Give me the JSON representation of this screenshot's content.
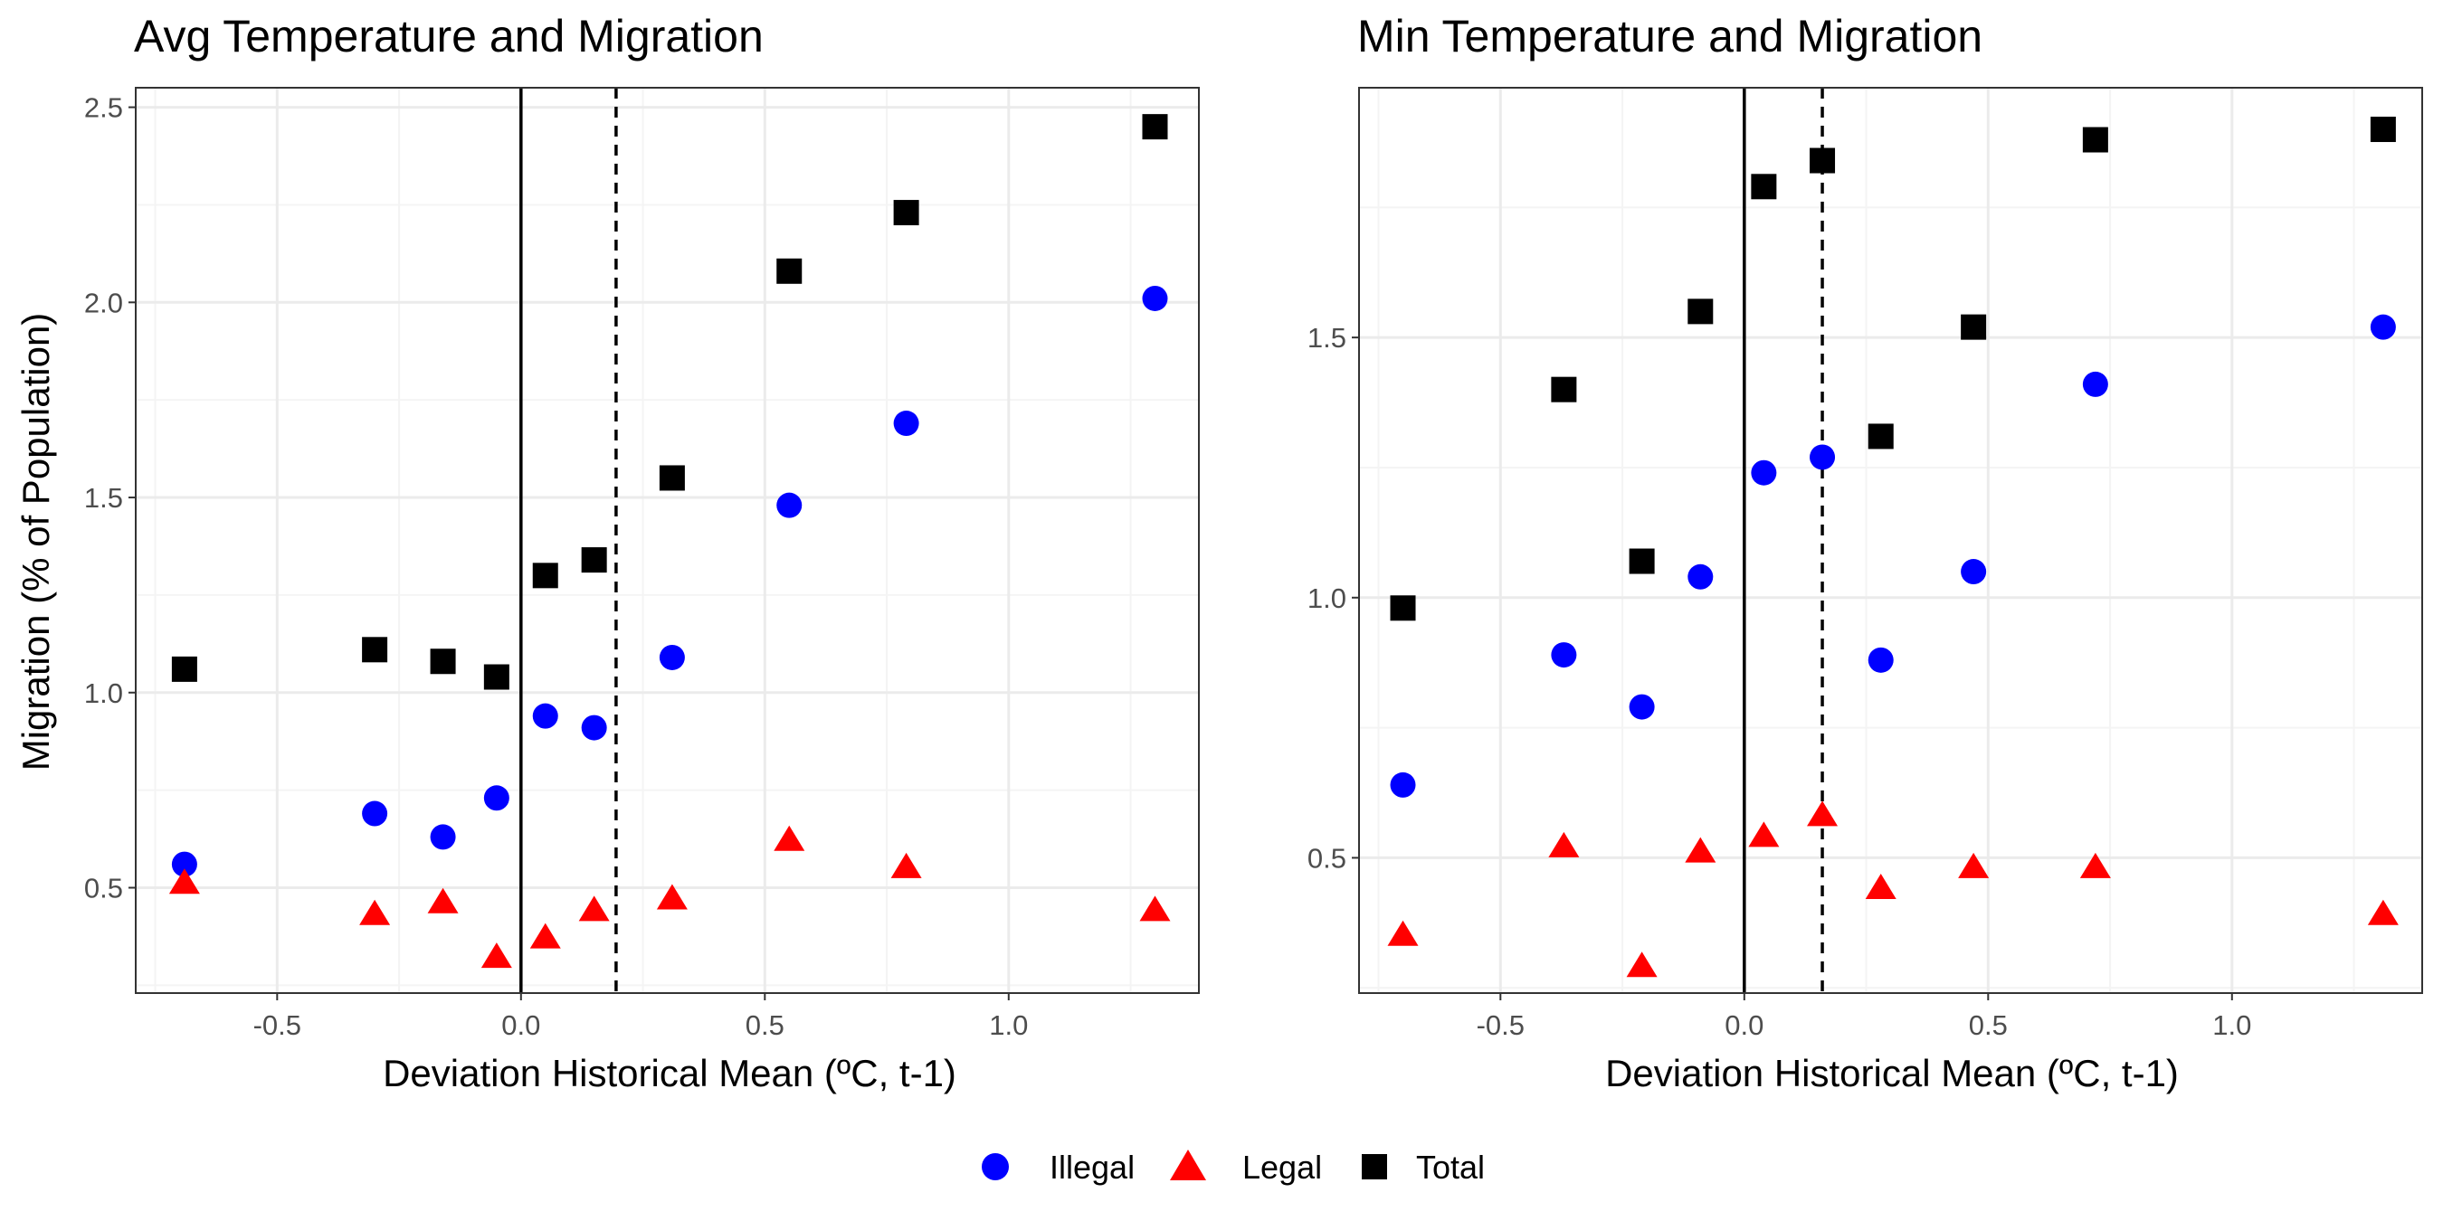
{
  "chart_data": [
    {
      "type": "scatter",
      "title": "Avg Temperature and Migration",
      "xlabel": "Deviation Historical Mean (ºC, t-1)",
      "ylabel": "Migration (% of Population)",
      "xlim": [
        -0.79,
        1.39
      ],
      "ylim": [
        0.23,
        2.55
      ],
      "xticks": [
        -0.5,
        0.0,
        0.5,
        1.0
      ],
      "xtick_labels": [
        "-0.5",
        "0.0",
        "0.5",
        "1.0"
      ],
      "yticks": [
        0.5,
        1.0,
        1.5,
        2.0,
        2.5
      ],
      "ytick_labels": [
        "0.5",
        "1.0",
        "1.5",
        "2.0",
        "2.5"
      ],
      "grid": true,
      "vlines": [
        {
          "x": 0.0,
          "style": "solid"
        },
        {
          "x": 0.195,
          "style": "dashed"
        }
      ],
      "series": [
        {
          "name": "Illegal",
          "marker": "circle",
          "color": "#0000ff",
          "x": [
            -0.69,
            -0.3,
            -0.16,
            -0.05,
            0.05,
            0.15,
            0.31,
            0.55,
            0.79,
            1.3
          ],
          "y": [
            0.56,
            0.69,
            0.63,
            0.73,
            0.94,
            0.91,
            1.09,
            1.48,
            1.69,
            2.01
          ]
        },
        {
          "name": "Legal",
          "marker": "triangle",
          "color": "#ff0000",
          "x": [
            -0.69,
            -0.3,
            -0.16,
            -0.05,
            0.05,
            0.15,
            0.31,
            0.55,
            0.79,
            1.3
          ],
          "y": [
            0.51,
            0.43,
            0.46,
            0.32,
            0.37,
            0.44,
            0.47,
            0.62,
            0.55,
            0.44
          ]
        },
        {
          "name": "Total",
          "marker": "square",
          "color": "#000000",
          "x": [
            -0.69,
            -0.3,
            -0.16,
            -0.05,
            0.05,
            0.15,
            0.31,
            0.55,
            0.79,
            1.3
          ],
          "y": [
            1.06,
            1.11,
            1.08,
            1.04,
            1.3,
            1.34,
            1.55,
            2.08,
            2.23,
            2.45
          ]
        }
      ]
    },
    {
      "type": "scatter",
      "title": "Min Temperature and Migration",
      "xlabel": "Deviation Historical Mean (ºC, t-1)",
      "ylabel": "",
      "xlim": [
        -0.79,
        1.39
      ],
      "ylim": [
        0.24,
        1.98
      ],
      "xticks": [
        -0.5,
        0.0,
        0.5,
        1.0
      ],
      "xtick_labels": [
        "-0.5",
        "0.0",
        "0.5",
        "1.0"
      ],
      "yticks": [
        0.5,
        1.0,
        1.5
      ],
      "ytick_labels": [
        "0.5",
        "1.0",
        "1.5"
      ],
      "grid": true,
      "vlines": [
        {
          "x": 0.0,
          "style": "solid"
        },
        {
          "x": 0.16,
          "style": "dashed"
        }
      ],
      "series": [
        {
          "name": "Illegal",
          "marker": "circle",
          "color": "#0000ff",
          "x": [
            -0.7,
            -0.37,
            -0.21,
            -0.09,
            0.04,
            0.16,
            0.28,
            0.47,
            0.72,
            1.31
          ],
          "y": [
            0.64,
            0.89,
            0.79,
            1.04,
            1.24,
            1.27,
            0.88,
            1.05,
            1.41,
            1.52
          ]
        },
        {
          "name": "Legal",
          "marker": "triangle",
          "color": "#ff0000",
          "x": [
            -0.7,
            -0.37,
            -0.21,
            -0.09,
            0.04,
            0.16,
            0.28,
            0.47,
            0.72,
            1.31
          ],
          "y": [
            0.35,
            0.52,
            0.29,
            0.51,
            0.54,
            0.58,
            0.44,
            0.48,
            0.48,
            0.39
          ]
        },
        {
          "name": "Total",
          "marker": "square",
          "color": "#000000",
          "x": [
            -0.7,
            -0.37,
            -0.21,
            -0.09,
            0.04,
            0.16,
            0.28,
            0.47,
            0.72,
            1.31
          ],
          "y": [
            0.98,
            1.4,
            1.07,
            1.55,
            1.79,
            1.84,
            1.31,
            1.52,
            1.88,
            1.9
          ]
        }
      ]
    }
  ],
  "legend": {
    "position": "bottom",
    "items": [
      {
        "label": "Illegal",
        "marker": "circle",
        "color": "#0000ff"
      },
      {
        "label": "Legal",
        "marker": "triangle",
        "color": "#ff0000"
      },
      {
        "label": "Total",
        "marker": "square",
        "color": "#000000"
      }
    ]
  },
  "colors": {
    "panel_border": "#333333",
    "grid_major": "#ebebeb",
    "grid_minor": "#f4f4f4",
    "tick_text": "#4d4d4d",
    "vline": "#000000"
  }
}
